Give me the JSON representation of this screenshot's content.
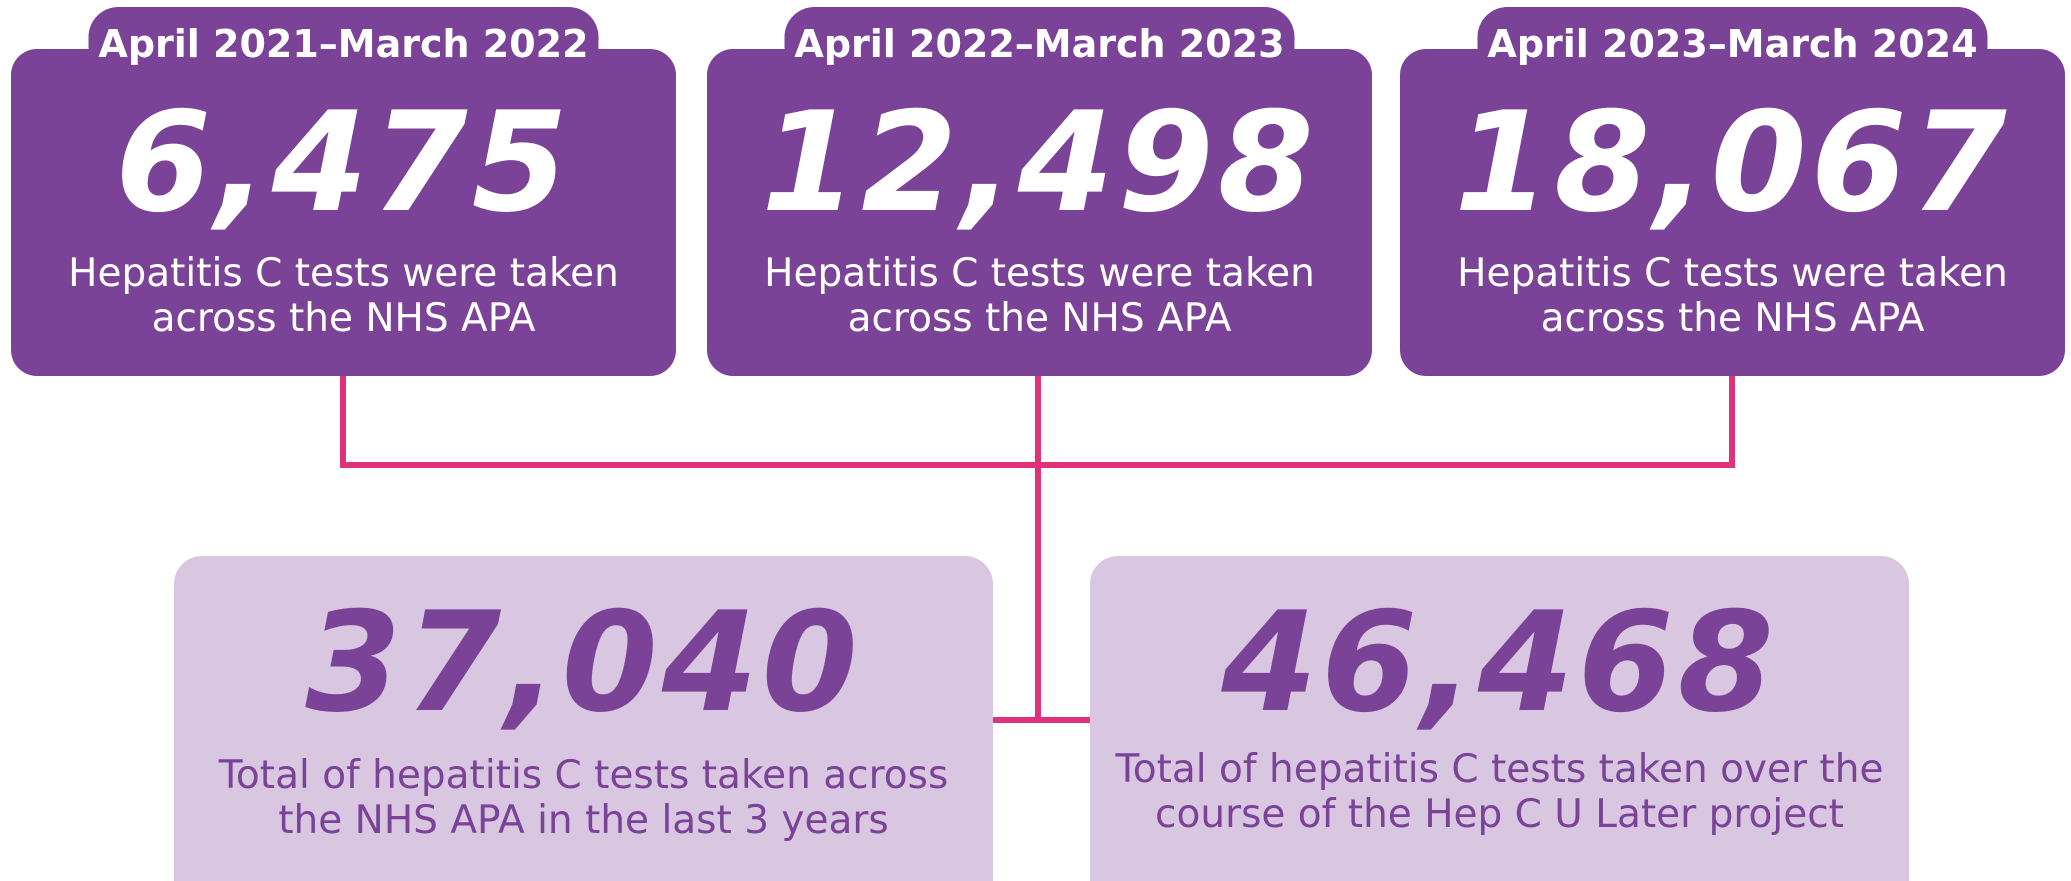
{
  "periods": [
    {
      "label": "April 2021–March 2022",
      "number": "6,475",
      "description": [
        "Hepatitis C tests were taken",
        "across the NHS APA"
      ]
    },
    {
      "label": "April 2022–March 2023",
      "number": "12,498",
      "description": [
        "Hepatitis C tests were taken",
        "across the NHS APA"
      ]
    },
    {
      "label": "April 2023–March 2024",
      "number": "18,067",
      "description": [
        "Hepatitis C tests were taken",
        "across the NHS APA"
      ]
    }
  ],
  "totals": [
    {
      "number": "37,040",
      "description": [
        "Total of hepatitis C tests taken across",
        "the NHS APA in the last 3 years"
      ]
    },
    {
      "number": "46,468",
      "description": [
        "Total of hepatitis C tests taken over the",
        "course of the Hep C U Later project"
      ]
    }
  ]
}
